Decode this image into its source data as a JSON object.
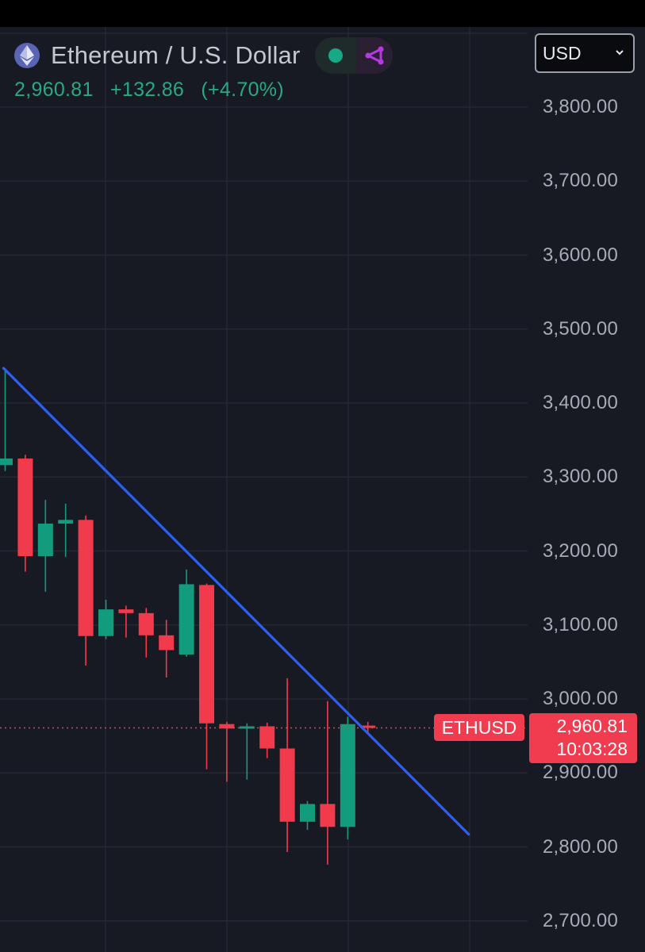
{
  "header": {
    "title": "Ethereum / U.S. Dollar",
    "price": "2,960.81",
    "change": "+132.86",
    "change_pct": "(+4.70%)"
  },
  "currency_select": {
    "value": "USD"
  },
  "price_tag": {
    "symbol": "ETHUSD",
    "price": "2,960.81",
    "countdown": "10:03:28"
  },
  "colors": {
    "up": "#139b7e",
    "down": "#f23a4d",
    "trendline": "#2f5ff0",
    "background": "#171a23",
    "grid": "#252832"
  },
  "chart_data": {
    "type": "candlestick",
    "y_axis_labels": [
      "3,800.00",
      "3,700.00",
      "3,600.00",
      "3,500.00",
      "3,400.00",
      "3,300.00",
      "3,200.00",
      "3,100.00",
      "3,000.00",
      "2,900.00",
      "2,800.00",
      "2,700.00"
    ],
    "ylim": [
      2660,
      3880
    ],
    "grid": true,
    "last_price": 2960.81,
    "candles": [
      {
        "open": 3316,
        "high": 3447,
        "low": 3308,
        "close": 3325
      },
      {
        "open": 3325,
        "high": 3330,
        "low": 3172,
        "close": 3193
      },
      {
        "open": 3193,
        "high": 3269,
        "low": 3145,
        "close": 3237
      },
      {
        "open": 3237,
        "high": 3264,
        "low": 3192,
        "close": 3242
      },
      {
        "open": 3242,
        "high": 3248,
        "low": 3045,
        "close": 3085
      },
      {
        "open": 3085,
        "high": 3134,
        "low": 3081,
        "close": 3121
      },
      {
        "open": 3121,
        "high": 3126,
        "low": 3083,
        "close": 3116
      },
      {
        "open": 3116,
        "high": 3123,
        "low": 3056,
        "close": 3086
      },
      {
        "open": 3086,
        "high": 3107,
        "low": 3029,
        "close": 3066
      },
      {
        "open": 3060,
        "high": 3175,
        "low": 3057,
        "close": 3155
      },
      {
        "open": 3154,
        "high": 3156,
        "low": 2905,
        "close": 2967
      },
      {
        "open": 2966,
        "high": 2969,
        "low": 2888,
        "close": 2960
      },
      {
        "open": 2962,
        "high": 2967,
        "low": 2891,
        "close": 2963
      },
      {
        "open": 2963,
        "high": 2968,
        "low": 2920,
        "close": 2933
      },
      {
        "open": 2933,
        "high": 3028,
        "low": 2793,
        "close": 2834
      },
      {
        "open": 2834,
        "high": 2862,
        "low": 2823,
        "close": 2858
      },
      {
        "open": 2858,
        "high": 2997,
        "low": 2776,
        "close": 2827
      },
      {
        "open": 2827,
        "high": 2976,
        "low": 2810,
        "close": 2966
      },
      {
        "open": 2964,
        "high": 2969,
        "low": 2952,
        "close": 2962
      }
    ],
    "trendline": {
      "from_candle": 0,
      "from_price": 3447,
      "to_candle": 23,
      "to_price": 2817
    }
  }
}
